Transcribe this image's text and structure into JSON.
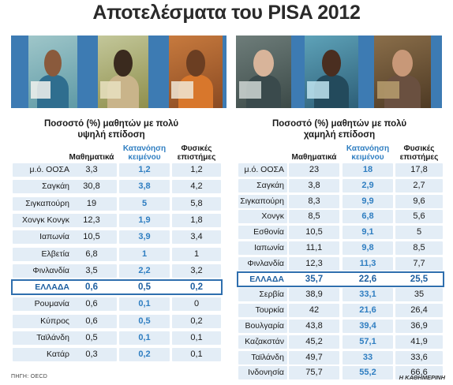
{
  "title": "Αποτελέσματα του PISA 2012",
  "source": "ΠΗΓΗ: OECD",
  "brand": "Η ΚΑΘΗΜΕΡΙΝΗ",
  "colors": {
    "accent_blue": "#2f7ec1",
    "stripe": "#e3edf6",
    "highlight_border": "#2f6fae",
    "photo_band": "#3d7bb3"
  },
  "chart_data": [
    {
      "type": "table",
      "title": "Ποσοστό (%) μαθητών με πολύ υψηλή επίδοση",
      "columns": [
        "Μαθηματικά",
        "Κατανόηση κειμένου",
        "Φυσικές επιστήμες"
      ],
      "columns_lines": [
        [
          "Μαθηματικά"
        ],
        [
          "Κατανόηση",
          "κειμένου"
        ],
        [
          "Φυσικές",
          "επιστήμες"
        ]
      ],
      "highlight_row": "ΕΛΛΑΔΑ",
      "rows": [
        {
          "country": "μ.ό. ΟΟΣΑ",
          "values": [
            "3,3",
            "1,2",
            "1,2"
          ]
        },
        {
          "country": "Σαγκάη",
          "values": [
            "30,8",
            "3,8",
            "4,2"
          ]
        },
        {
          "country": "Σιγκαπούρη",
          "values": [
            "19",
            "5",
            "5,8"
          ]
        },
        {
          "country": "Χονγκ Κονγκ",
          "values": [
            "12,3",
            "1,9",
            "1,8"
          ]
        },
        {
          "country": "Ιαπωνία",
          "values": [
            "10,5",
            "3,9",
            "3,4"
          ]
        },
        {
          "country": "Ελβετία",
          "values": [
            "6,8",
            "1",
            "1"
          ]
        },
        {
          "country": "Φινλανδία",
          "values": [
            "3,5",
            "2,2",
            "3,2"
          ]
        },
        {
          "country": "ΕΛΛΑΔΑ",
          "values": [
            "0,6",
            "0,5",
            "0,2"
          ]
        },
        {
          "country": "Ρουμανία",
          "values": [
            "0,6",
            "0,1",
            "0"
          ]
        },
        {
          "country": "Κύπρος",
          "values": [
            "0,6",
            "0,5",
            "0,2"
          ]
        },
        {
          "country": "Ταϊλάνδη",
          "values": [
            "0,5",
            "0,1",
            "0,1"
          ]
        },
        {
          "country": "Κατάρ",
          "values": [
            "0,3",
            "0,2",
            "0,1"
          ]
        }
      ]
    },
    {
      "type": "table",
      "title": "Ποσοστό (%) μαθητών με πολύ χαμηλή επίδοση",
      "columns": [
        "Μαθηματικά",
        "Κατανόηση κειμένου",
        "Φυσικές επιστήμες"
      ],
      "columns_lines": [
        [
          "Μαθηματικά"
        ],
        [
          "Κατανόηση",
          "κειμένου"
        ],
        [
          "Φυσικές",
          "επιστήμες"
        ]
      ],
      "highlight_row": "ΕΛΛΑΔΑ",
      "rows": [
        {
          "country": "μ.ό. ΟΟΣΑ",
          "values": [
            "23",
            "18",
            "17,8"
          ]
        },
        {
          "country": "Σαγκάη",
          "values": [
            "3,8",
            "2,9",
            "2,7"
          ]
        },
        {
          "country": "Σιγκαπούρη",
          "values": [
            "8,3",
            "9,9",
            "9,6"
          ]
        },
        {
          "country": "Χονγκ Κονγκ",
          "values": [
            "8,5",
            "6,8",
            "5,6"
          ]
        },
        {
          "country": "Εσθονία",
          "values": [
            "10,5",
            "9,1",
            "5"
          ]
        },
        {
          "country": "Ιαπωνία",
          "values": [
            "11,1",
            "9,8",
            "8,5"
          ]
        },
        {
          "country": "Φινλανδία",
          "values": [
            "12,3",
            "11,3",
            "7,7"
          ]
        },
        {
          "country": "ΕΛΛΑΔΑ",
          "values": [
            "35,7",
            "22,6",
            "25,5"
          ]
        },
        {
          "country": "Σερβία",
          "values": [
            "38,9",
            "33,1",
            "35"
          ]
        },
        {
          "country": "Τουρκία",
          "values": [
            "42",
            "21,6",
            "26,4"
          ]
        },
        {
          "country": "Βουλγαρία",
          "values": [
            "43,8",
            "39,4",
            "36,9"
          ]
        },
        {
          "country": "Καζακστάν",
          "values": [
            "45,2",
            "57,1",
            "41,9"
          ]
        },
        {
          "country": "Ταϊλάνδη",
          "values": [
            "49,7",
            "33",
            "33,6"
          ]
        },
        {
          "country": "Ινδονησία",
          "values": [
            "75,7",
            "55,2",
            "66,6"
          ]
        }
      ]
    }
  ]
}
